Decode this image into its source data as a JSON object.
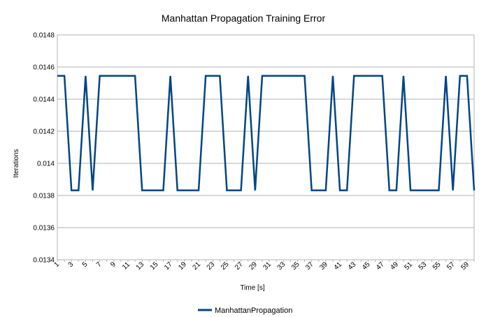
{
  "chart_data": {
    "type": "line",
    "title": "Manhattan Propagation Training Error",
    "xlabel": "Time [s]",
    "ylabel": "Iterations",
    "ylim": [
      0.0134,
      0.0148
    ],
    "yticks": [
      "0.0148",
      "0.0146",
      "0.0144",
      "0.0142",
      "0.014",
      "0.0138",
      "0.0136",
      "0.0134"
    ],
    "ytick_values": [
      0.0148,
      0.0146,
      0.0144,
      0.0142,
      0.014,
      0.0138,
      0.0136,
      0.0134
    ],
    "x": [
      1,
      2,
      3,
      4,
      5,
      6,
      7,
      8,
      9,
      10,
      11,
      12,
      13,
      14,
      15,
      16,
      17,
      18,
      19,
      20,
      21,
      22,
      23,
      24,
      25,
      26,
      27,
      28,
      29,
      30,
      31,
      32,
      33,
      34,
      35,
      36,
      37,
      38,
      39,
      40,
      41,
      42,
      43,
      44,
      45,
      46,
      47,
      48,
      49,
      50,
      51,
      52,
      53,
      54,
      55,
      56,
      57,
      58,
      59,
      60
    ],
    "xtick_labels": [
      "1",
      "3",
      "5",
      "7",
      "9",
      "11",
      "13",
      "15",
      "17",
      "19",
      "21",
      "23",
      "25",
      "27",
      "29",
      "31",
      "33",
      "35",
      "37",
      "39",
      "41",
      "43",
      "45",
      "47",
      "49",
      "51",
      "53",
      "55",
      "57",
      "59"
    ],
    "grid": true,
    "legend_position": "bottom",
    "series": [
      {
        "name": "ManhattanPropagation",
        "color": "#004586",
        "values": [
          0.014545,
          0.014545,
          0.013832,
          0.013832,
          0.014545,
          0.013832,
          0.014545,
          0.014545,
          0.014545,
          0.014545,
          0.014545,
          0.014545,
          0.013832,
          0.013832,
          0.013832,
          0.013832,
          0.014545,
          0.013832,
          0.013832,
          0.013832,
          0.013832,
          0.014545,
          0.014545,
          0.014545,
          0.013832,
          0.013832,
          0.013832,
          0.014545,
          0.013832,
          0.014545,
          0.014545,
          0.014545,
          0.014545,
          0.014545,
          0.014545,
          0.014545,
          0.013832,
          0.013832,
          0.013832,
          0.014545,
          0.013832,
          0.013832,
          0.014545,
          0.014545,
          0.014545,
          0.014545,
          0.014545,
          0.013832,
          0.013832,
          0.014545,
          0.013832,
          0.013832,
          0.013832,
          0.013832,
          0.013832,
          0.014545,
          0.013832,
          0.014545,
          0.014545,
          0.013832
        ]
      }
    ]
  }
}
